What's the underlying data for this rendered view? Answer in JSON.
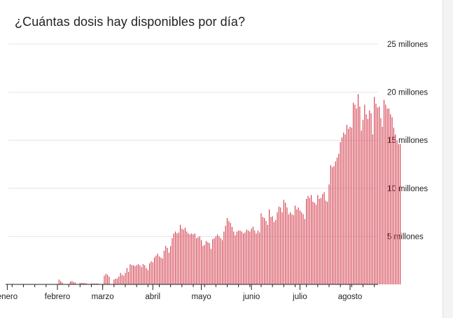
{
  "title": "¿Cuántas dosis hay disponibles por día?",
  "chart_data": {
    "type": "bar",
    "title": "¿Cuántas dosis hay disponibles por día?",
    "xlabel": "",
    "ylabel": "",
    "ylim": [
      0,
      25000000
    ],
    "y_ticks": [
      {
        "value": 5000000,
        "label": "5 millones"
      },
      {
        "value": 10000000,
        "label": "10 millones"
      },
      {
        "value": 15000000,
        "label": "15 millones"
      },
      {
        "value": 20000000,
        "label": "20 millones"
      },
      {
        "value": 25000000,
        "label": "25 millones"
      }
    ],
    "x_ticks": [
      {
        "date": "2021-01-01",
        "label": "enero"
      },
      {
        "date": "2021-02-01",
        "label": "febrero"
      },
      {
        "date": "2021-03-01",
        "label": "marzo"
      },
      {
        "date": "2021-04-01",
        "label": "abril"
      },
      {
        "date": "2021-05-01",
        "label": "mayo"
      },
      {
        "date": "2021-06-01",
        "label": "junio"
      },
      {
        "date": "2021-07-01",
        "label": "julio"
      },
      {
        "date": "2021-08-01",
        "label": "agosto"
      }
    ],
    "grid": true,
    "bar_color": "#d33a4a",
    "series": [
      {
        "weekly": [
          {
            "start": "2020-12-21",
            "values": [
              0,
              0,
              0,
              0,
              0,
              0,
              0
            ]
          },
          {
            "start": "2020-12-28",
            "values": [
              0,
              0,
              0,
              0,
              0,
              0,
              0
            ]
          },
          {
            "start": "2021-01-04",
            "values": [
              0,
              0,
              0,
              0,
              0,
              0,
              0
            ]
          },
          {
            "start": "2021-01-11",
            "values": [
              0,
              0,
              0,
              0,
              0,
              0,
              0
            ]
          },
          {
            "start": "2021-01-18",
            "values": [
              0,
              0,
              0,
              0,
              0,
              0,
              0
            ]
          },
          {
            "start": "2021-01-25",
            "values": [
              0,
              0,
              0,
              0,
              0,
              0,
              0
            ]
          },
          {
            "start": "2021-02-01",
            "values": [
              0,
              500000,
              350000,
              200000,
              0,
              0,
              0
            ]
          },
          {
            "start": "2021-02-08",
            "values": [
              0,
              300000,
              350000,
              250000,
              200000,
              0,
              0
            ]
          },
          {
            "start": "2021-02-15",
            "values": [
              150000,
              150000,
              150000,
              150000,
              100000,
              0,
              0
            ]
          },
          {
            "start": "2021-02-22",
            "values": [
              100000,
              100000,
              100000,
              100000,
              100000,
              0,
              0
            ]
          },
          {
            "start": "2021-03-01",
            "values": [
              0,
              900000,
              1100000,
              1000000,
              800000,
              0,
              0
            ]
          },
          {
            "start": "2021-03-08",
            "values": [
              500000,
              600000,
              600000,
              800000,
              1200000,
              1000000,
              900000
            ]
          },
          {
            "start": "2021-03-15",
            "values": [
              1200000,
              1700000,
              1300000,
              2100000,
              2000000,
              2000000,
              1900000
            ]
          },
          {
            "start": "2021-03-22",
            "values": [
              2000000,
              2100000,
              2000000,
              1800000,
              2100000,
              2000000,
              1700000
            ]
          },
          {
            "start": "2021-03-29",
            "values": [
              1500000,
              2200000,
              2400000,
              2300000,
              2800000,
              3000000,
              3200000
            ]
          },
          {
            "start": "2021-04-05",
            "values": [
              2900000,
              2800000,
              2700000,
              3500000,
              4000000,
              3800000,
              3300000
            ]
          },
          {
            "start": "2021-04-12",
            "values": [
              4000000,
              4800000,
              5300000,
              5500000,
              5300000,
              5400000,
              6200000
            ]
          },
          {
            "start": "2021-04-19",
            "values": [
              5800000,
              5700000,
              5900000,
              5500000,
              5300000,
              5200000,
              5300000
            ]
          },
          {
            "start": "2021-04-26",
            "values": [
              5200000,
              5300000,
              4800000,
              4900000,
              5000000,
              4600000,
              4000000
            ]
          },
          {
            "start": "2021-05-03",
            "values": [
              4100000,
              4500000,
              4400000,
              4300000,
              3700000,
              4700000,
              4800000
            ]
          },
          {
            "start": "2021-05-10",
            "values": [
              5000000,
              5200000,
              5000000,
              4800000,
              4600000,
              5500000,
              6100000
            ]
          },
          {
            "start": "2021-05-17",
            "values": [
              6900000,
              6600000,
              6400000,
              6000000,
              5500000,
              5100000,
              5500000
            ]
          },
          {
            "start": "2021-05-24",
            "values": [
              5600000,
              5600000,
              5500000,
              5300000,
              5400000,
              5700000,
              5600000
            ]
          },
          {
            "start": "2021-05-31",
            "values": [
              5500000,
              5800000,
              6000000,
              5600000,
              5300000,
              5600000,
              5400000
            ]
          },
          {
            "start": "2021-06-07",
            "values": [
              7400000,
              7000000,
              6900000,
              6600000,
              6200000,
              7800000,
              7000000
            ]
          },
          {
            "start": "2021-06-14",
            "values": [
              7100000,
              6500000,
              6700000,
              7500000,
              8100000,
              8000000,
              7500000
            ]
          },
          {
            "start": "2021-06-21",
            "values": [
              8800000,
              8500000,
              8000000,
              7300000,
              7500000,
              7300000,
              7200000
            ]
          },
          {
            "start": "2021-06-28",
            "values": [
              8200000,
              7800000,
              8000000,
              7700000,
              7500000,
              7300000,
              6800000
            ]
          },
          {
            "start": "2021-07-05",
            "values": [
              8900000,
              9200000,
              9000000,
              9300000,
              8600000,
              8500000,
              8300000
            ]
          },
          {
            "start": "2021-07-12",
            "values": [
              9300000,
              8900000,
              9000000,
              9400000,
              9600000,
              8700000,
              8600000
            ]
          },
          {
            "start": "2021-07-19",
            "values": [
              10400000,
              12400000,
              12200000,
              12300000,
              12800000,
              13200000,
              13600000
            ]
          },
          {
            "start": "2021-07-26",
            "values": [
              14800000,
              15300000,
              15800000,
              15600000,
              16600000,
              16200000,
              16400000
            ]
          },
          {
            "start": "2021-08-02",
            "values": [
              16300000,
              18900000,
              18700000,
              18300000,
              19800000,
              18500000,
              16000000
            ]
          },
          {
            "start": "2021-08-09",
            "values": [
              17100000,
              18700000,
              17700000,
              17200000,
              18100000,
              17800000,
              15600000
            ]
          },
          {
            "start": "2021-08-16",
            "values": [
              19500000,
              18800000,
              18400000,
              18500000,
              17300000,
              16400000,
              19200000
            ]
          },
          {
            "start": "2021-08-23",
            "values": [
              18700000,
              18300000,
              18300000,
              17700000,
              17400000,
              16300000,
              15600000
            ]
          },
          {
            "start": "2021-08-30",
            "values": [
              15000000,
              14600000,
              14600000
            ]
          }
        ]
      }
    ]
  }
}
